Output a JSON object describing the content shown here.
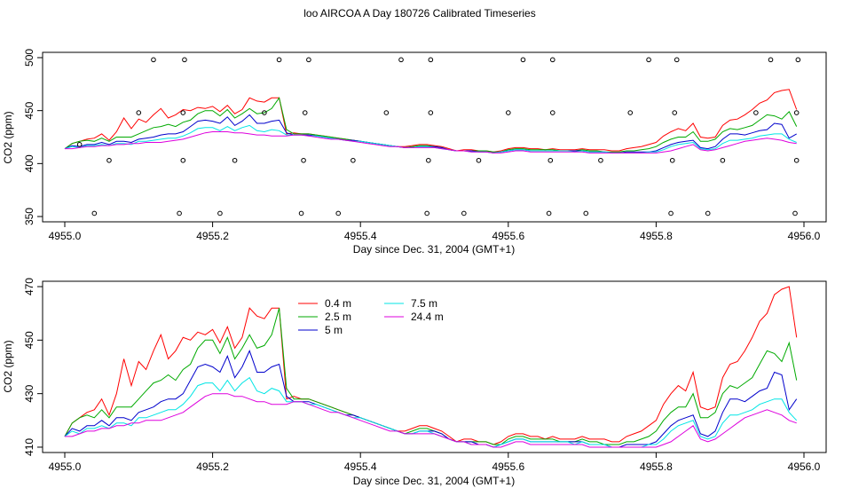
{
  "figure": {
    "title": "loo AIRCOA A  Day 180726  Calibrated Timeseries"
  },
  "chart_data": [
    {
      "type": "line",
      "title": "loo AIRCOA A  Day 180726  Calibrated Timeseries",
      "xlabel": "Day since Dec. 31, 2004 (GMT+1)",
      "ylabel": "CO2 (ppm)",
      "xlim": [
        4954.97,
        4956.03
      ],
      "ylim": [
        345,
        505
      ],
      "xticks": [
        "4955.0",
        "4955.2",
        "4955.4",
        "4955.6",
        "4955.8",
        "4956.0"
      ],
      "yticks": [
        "350",
        "400",
        "450",
        "500"
      ],
      "grid": false,
      "x": [
        4955.0,
        4955.01,
        4955.02,
        4955.03,
        4955.04,
        4955.05,
        4955.06,
        4955.07,
        4955.08,
        4955.09,
        4955.1,
        4955.11,
        4955.12,
        4955.13,
        4955.14,
        4955.15,
        4955.16,
        4955.17,
        4955.18,
        4955.19,
        4955.2,
        4955.21,
        4955.22,
        4955.23,
        4955.24,
        4955.25,
        4955.26,
        4955.27,
        4955.28,
        4955.29,
        4955.3,
        4955.31,
        4955.32,
        4955.33,
        4955.34,
        4955.35,
        4955.36,
        4955.37,
        4955.38,
        4955.39,
        4955.4,
        4955.41,
        4955.42,
        4955.43,
        4955.44,
        4955.45,
        4955.46,
        4955.47,
        4955.48,
        4955.49,
        4955.5,
        4955.51,
        4955.52,
        4955.53,
        4955.54,
        4955.55,
        4955.56,
        4955.57,
        4955.58,
        4955.59,
        4955.6,
        4955.61,
        4955.62,
        4955.63,
        4955.64,
        4955.65,
        4955.66,
        4955.67,
        4955.68,
        4955.69,
        4955.7,
        4955.71,
        4955.72,
        4955.73,
        4955.74,
        4955.75,
        4955.76,
        4955.77,
        4955.78,
        4955.79,
        4955.8,
        4955.81,
        4955.82,
        4955.83,
        4955.84,
        4955.85,
        4955.86,
        4955.87,
        4955.88,
        4955.89,
        4955.9,
        4955.91,
        4955.92,
        4955.93,
        4955.94,
        4955.95,
        4955.96,
        4955.97,
        4955.98,
        4955.99
      ],
      "series": [
        {
          "name": "0.4 m",
          "color": "#ff0000",
          "values": [
            414,
            419,
            421,
            423,
            424,
            428,
            422,
            430,
            443,
            433,
            442,
            439,
            446,
            452,
            443,
            446,
            451,
            450,
            453,
            452,
            454,
            449,
            455,
            447,
            451,
            462,
            459,
            458,
            462,
            462,
            428,
            429,
            428,
            428,
            427,
            426,
            425,
            424,
            423,
            422,
            421,
            420,
            419,
            418,
            417,
            416,
            416,
            417,
            418,
            418,
            417,
            416,
            414,
            412,
            413,
            413,
            412,
            412,
            411,
            412,
            414,
            415,
            415,
            414,
            414,
            413,
            414,
            413,
            413,
            413,
            414,
            413,
            413,
            413,
            412,
            412,
            414,
            415,
            416,
            418,
            420,
            426,
            430,
            433,
            431,
            438,
            425,
            424,
            425,
            436,
            441,
            442,
            446,
            451,
            457,
            460,
            467,
            469,
            470,
            451
          ]
        },
        {
          "name": "2.5 m",
          "color": "#00aa00",
          "values": [
            414,
            419,
            421,
            422,
            421,
            424,
            421,
            425,
            425,
            425,
            428,
            431,
            434,
            435,
            437,
            435,
            439,
            441,
            447,
            450,
            450,
            445,
            451,
            443,
            447,
            452,
            447,
            448,
            452,
            462,
            432,
            428,
            428,
            428,
            427,
            426,
            425,
            424,
            423,
            422,
            421,
            420,
            419,
            418,
            417,
            416,
            415,
            416,
            417,
            417,
            416,
            415,
            413,
            412,
            412,
            412,
            412,
            412,
            411,
            411,
            413,
            414,
            414,
            413,
            413,
            413,
            413,
            412,
            412,
            412,
            413,
            412,
            412,
            411,
            411,
            411,
            412,
            412,
            413,
            414,
            416,
            420,
            423,
            425,
            425,
            430,
            421,
            421,
            423,
            430,
            433,
            432,
            434,
            436,
            441,
            446,
            445,
            442,
            449,
            435
          ]
        },
        {
          "name": "5 m",
          "color": "#0000cc",
          "values": [
            414,
            417,
            416,
            418,
            418,
            420,
            418,
            421,
            421,
            420,
            423,
            424,
            425,
            427,
            428,
            428,
            430,
            435,
            440,
            441,
            440,
            438,
            444,
            436,
            440,
            446,
            438,
            438,
            440,
            441,
            429,
            427,
            427,
            427,
            426,
            425,
            424,
            423,
            422,
            422,
            421,
            420,
            419,
            418,
            417,
            416,
            415,
            415,
            416,
            416,
            416,
            415,
            413,
            412,
            412,
            412,
            411,
            411,
            410,
            411,
            412,
            413,
            413,
            412,
            412,
            412,
            412,
            412,
            412,
            412,
            412,
            411,
            411,
            411,
            410,
            410,
            411,
            411,
            411,
            411,
            412,
            415,
            418,
            420,
            421,
            422,
            415,
            414,
            416,
            423,
            428,
            428,
            427,
            429,
            431,
            432,
            438,
            437,
            424,
            428
          ]
        },
        {
          "name": "7.5 m",
          "color": "#00e5e5",
          "values": [
            414,
            416,
            415,
            417,
            417,
            418,
            417,
            419,
            419,
            418,
            421,
            421,
            422,
            423,
            424,
            424,
            426,
            429,
            433,
            434,
            434,
            431,
            435,
            431,
            434,
            436,
            431,
            430,
            432,
            431,
            427,
            427,
            427,
            426,
            426,
            425,
            424,
            423,
            422,
            421,
            421,
            420,
            419,
            418,
            417,
            416,
            415,
            415,
            416,
            416,
            415,
            414,
            413,
            412,
            412,
            411,
            411,
            411,
            410,
            411,
            412,
            413,
            413,
            412,
            412,
            412,
            412,
            412,
            412,
            411,
            412,
            411,
            411,
            411,
            410,
            410,
            410,
            410,
            410,
            411,
            411,
            413,
            416,
            418,
            419,
            420,
            414,
            413,
            414,
            419,
            422,
            422,
            423,
            424,
            426,
            427,
            428,
            428,
            423,
            420
          ]
        },
        {
          "name": "24.4 m",
          "color": "#dd00dd",
          "values": [
            414,
            414,
            415,
            416,
            416,
            417,
            417,
            418,
            418,
            419,
            419,
            420,
            420,
            420,
            421,
            422,
            423,
            425,
            427,
            429,
            430,
            430,
            430,
            429,
            429,
            428,
            427,
            427,
            426,
            426,
            426,
            427,
            427,
            426,
            425,
            424,
            423,
            423,
            422,
            421,
            420,
            419,
            418,
            417,
            416,
            416,
            415,
            415,
            415,
            415,
            415,
            414,
            413,
            412,
            412,
            411,
            411,
            411,
            410,
            410,
            411,
            412,
            412,
            411,
            411,
            411,
            411,
            411,
            411,
            411,
            411,
            410,
            410,
            410,
            410,
            410,
            410,
            410,
            410,
            410,
            410,
            411,
            412,
            414,
            416,
            418,
            413,
            412,
            413,
            415,
            417,
            419,
            421,
            422,
            423,
            424,
            423,
            422,
            420,
            419
          ]
        }
      ],
      "flag_markers": {
        "x": [
          4955.02,
          4955.04,
          4955.06,
          4955.1,
          4955.12,
          4955.155,
          4955.16,
          4955.16,
          4955.162,
          4955.21,
          4955.23,
          4955.27,
          4955.29,
          4955.32,
          4955.323,
          4955.325,
          4955.33,
          4955.37,
          4955.39,
          4955.435,
          4955.455,
          4955.49,
          4955.492,
          4955.495,
          4955.495,
          4955.54,
          4955.56,
          4955.6,
          4955.62,
          4955.655,
          4955.657,
          4955.66,
          4955.66,
          4955.705,
          4955.725,
          4955.765,
          4955.79,
          4955.82,
          4955.822,
          4955.825,
          4955.828,
          4955.87,
          4955.89,
          4955.935,
          4955.955,
          4955.988,
          4955.99,
          4955.99,
          4955.992
        ],
        "values": [
          418,
          353,
          403,
          448,
          498,
          353,
          403,
          448,
          498,
          353,
          403,
          448,
          498,
          353,
          403,
          448,
          498,
          353,
          403,
          448,
          498,
          353,
          403,
          448,
          498,
          353,
          403,
          448,
          498,
          353,
          403,
          448,
          498,
          353,
          403,
          448,
          498,
          353,
          403,
          448,
          498,
          353,
          403,
          448,
          498,
          353,
          403,
          448,
          498
        ]
      }
    },
    {
      "type": "line",
      "xlabel": "Day since Dec. 31, 2004 (GMT+1)",
      "ylabel": "CO2 (ppm)",
      "xlim": [
        4954.97,
        4956.03
      ],
      "ylim": [
        408,
        472
      ],
      "xticks": [
        "4955.0",
        "4955.2",
        "4955.4",
        "4955.6",
        "4955.8",
        "4956.0"
      ],
      "yticks": [
        "410",
        "430",
        "450",
        "470"
      ],
      "grid": false,
      "legend": "top-left",
      "same_data_as": "chart_data.0.series"
    }
  ]
}
